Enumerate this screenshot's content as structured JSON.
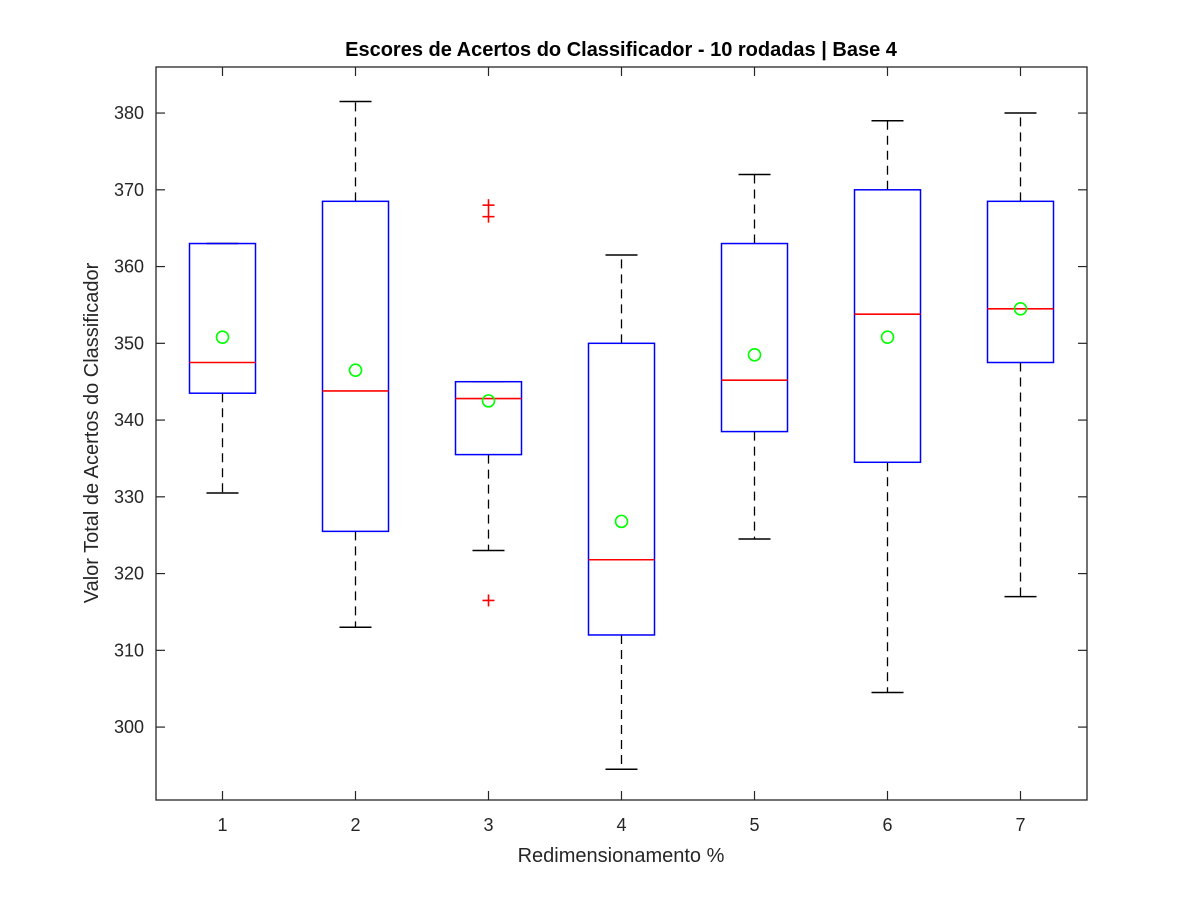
{
  "chart_data": {
    "type": "box",
    "title": "Escores de Acertos do Classificador - 10 rodadas | Base 4",
    "xlabel": "Redimensionamento %",
    "ylabel": "Valor Total de Acertos do Classificador",
    "categories": [
      "1",
      "2",
      "3",
      "4",
      "5",
      "6",
      "7"
    ],
    "xlim": [
      0.5,
      7.5
    ],
    "ylim": [
      290.5,
      386
    ],
    "yticks": [
      300,
      310,
      320,
      330,
      340,
      350,
      360,
      370,
      380
    ],
    "grid": false,
    "boxes": [
      {
        "category": "1",
        "whisker_low": 330.5,
        "q1": 343.5,
        "median": 347.5,
        "q3": 363,
        "whisker_high": 363,
        "mean": 350.8,
        "outliers": []
      },
      {
        "category": "2",
        "whisker_low": 313,
        "q1": 325.5,
        "median": 343.8,
        "q3": 368.5,
        "whisker_high": 381.5,
        "mean": 346.5,
        "outliers": []
      },
      {
        "category": "3",
        "whisker_low": 323,
        "q1": 335.5,
        "median": 342.8,
        "q3": 345,
        "whisker_high": 345,
        "mean": 342.5,
        "outliers": [
          316.5,
          366.5,
          368
        ]
      },
      {
        "category": "4",
        "whisker_low": 294.5,
        "q1": 312,
        "median": 321.8,
        "q3": 350,
        "whisker_high": 361.5,
        "mean": 326.8,
        "outliers": []
      },
      {
        "category": "5",
        "whisker_low": 324.5,
        "q1": 338.5,
        "median": 345.2,
        "q3": 363,
        "whisker_high": 372,
        "mean": 348.5,
        "outliers": []
      },
      {
        "category": "6",
        "whisker_low": 304.5,
        "q1": 334.5,
        "median": 353.8,
        "q3": 370,
        "whisker_high": 379,
        "mean": 350.8,
        "outliers": []
      },
      {
        "category": "7",
        "whisker_low": 317,
        "q1": 347.5,
        "median": 354.5,
        "q3": 368.5,
        "whisker_high": 380,
        "mean": 354.5,
        "outliers": []
      }
    ],
    "colors": {
      "box": "#0000ff",
      "median": "#ff0000",
      "whisker": "#000000",
      "mean_marker": "#00ff00",
      "outlier": "#ff0000",
      "axis": "#262626"
    }
  }
}
